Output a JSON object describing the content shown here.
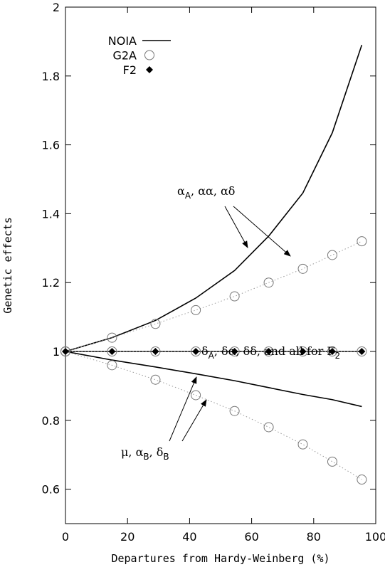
{
  "chart_data": {
    "type": "line",
    "xlabel": "Departures from Hardy-Weinberg (%)",
    "ylabel": "Genetic effects",
    "xlim": [
      0,
      100
    ],
    "xticks": [
      0,
      20,
      40,
      60,
      80,
      100
    ],
    "ylim": [
      0.5,
      2
    ],
    "yticks": [
      0.6,
      0.8,
      1,
      1.2,
      1.4,
      1.6,
      1.8,
      2
    ],
    "x": [
      0,
      15,
      29,
      42,
      54.5,
      65.5,
      76.5,
      86,
      95.5
    ],
    "series": [
      {
        "name": "NOIA",
        "color": "#000000",
        "style": "line",
        "values": [
          [
            1,
            1.04,
            1.09,
            1.155,
            1.235,
            1.335,
            1.46,
            1.635,
            1.89
          ],
          [
            1,
            1,
            1,
            1,
            1,
            1,
            1,
            1,
            1
          ],
          [
            1,
            0.975,
            0.955,
            0.935,
            0.915,
            0.895,
            0.875,
            0.86,
            0.84
          ]
        ]
      },
      {
        "name": "G2A",
        "color": "#777777",
        "style": "open-circle",
        "values": [
          [
            1,
            1.04,
            1.08,
            1.12,
            1.16,
            1.2,
            1.24,
            1.28,
            1.32
          ],
          [
            1,
            1,
            1,
            1,
            1,
            1,
            1,
            1,
            1
          ],
          [
            1,
            0.96,
            0.918,
            0.873,
            0.827,
            0.78,
            0.73,
            0.68,
            0.628
          ]
        ]
      },
      {
        "name": "F2",
        "color": "#000000",
        "style": "diamond",
        "values": [
          [
            1,
            1,
            1,
            1,
            1,
            1,
            1,
            1,
            1
          ]
        ]
      }
    ],
    "annotations": [
      [
        {
          "text": "α"
        },
        {
          "sub": "A"
        },
        {
          "text": ", αα, αδ"
        }
      ],
      [
        {
          "text": "δ"
        },
        {
          "sub": "A"
        },
        {
          "text": ", δα, δδ, and all for F"
        },
        {
          "sub": "2"
        }
      ],
      [
        {
          "text": "μ, α"
        },
        {
          "sub": "B"
        },
        {
          "text": ", δ"
        },
        {
          "sub": "B"
        }
      ]
    ]
  }
}
